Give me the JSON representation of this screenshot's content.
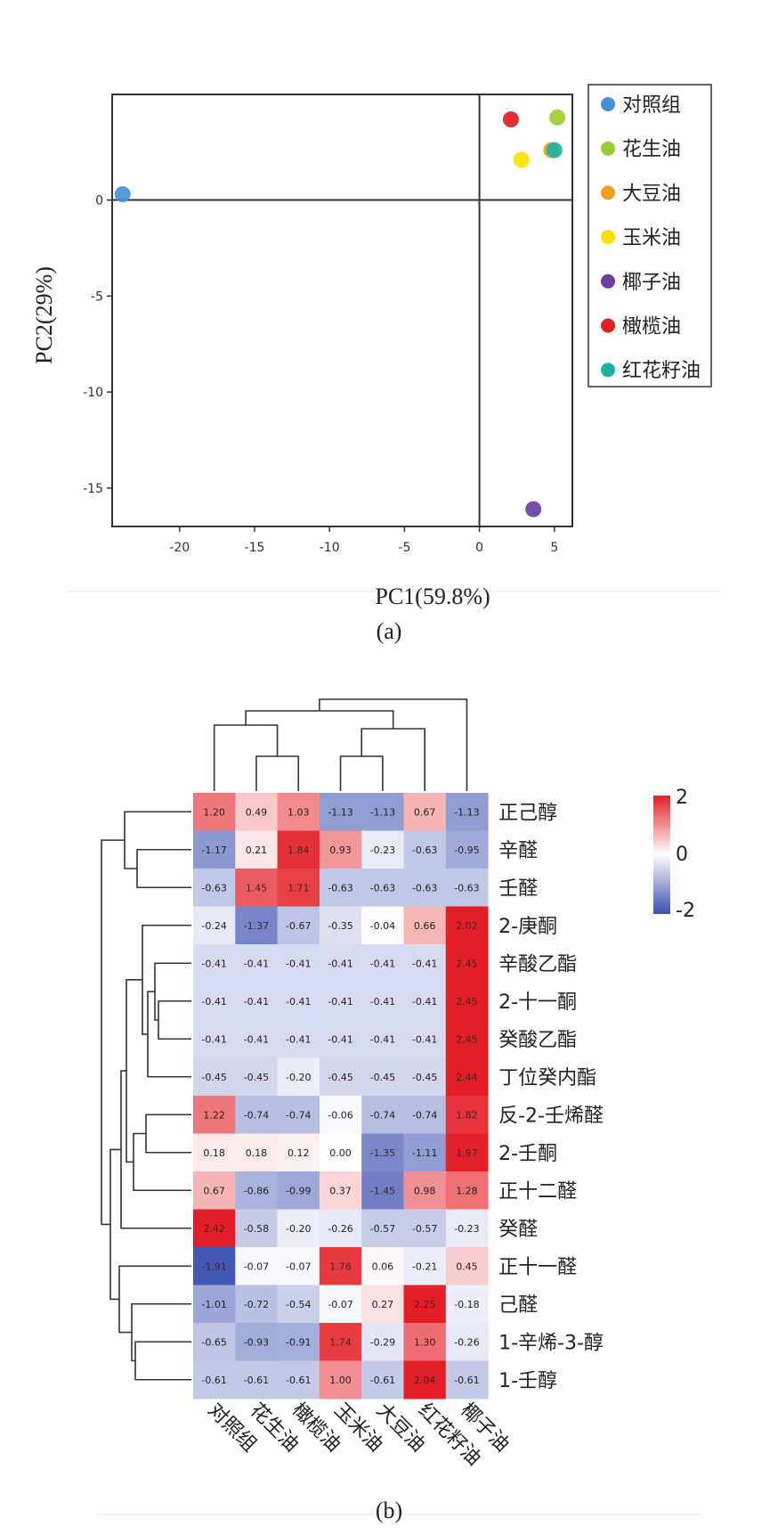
{
  "panel_a": {
    "caption": "(a)",
    "xlabel": "PC1(59.8%)",
    "ylabel": "PC2(29%)",
    "xticks": [
      "-20",
      "-15",
      "-10",
      "-5",
      "0",
      "5"
    ],
    "yticks": [
      "0",
      "-5",
      "-10",
      "-15"
    ]
  },
  "panel_b": {
    "caption": "(b)",
    "colorbar_labels": [
      "2",
      "0",
      "-2"
    ]
  },
  "chart_data": [
    {
      "type": "scatter",
      "xlabel": "PC1(59.8%)",
      "ylabel": "PC2(29%)",
      "xlim": [
        -24.5,
        6.2
      ],
      "ylim": [
        -17,
        5.5
      ],
      "grid": false,
      "reference_lines": {
        "x": 0,
        "y": 0
      },
      "legend_position": "right",
      "series": [
        {
          "name": "对照组",
          "color": "#4a90d9",
          "x": -23.8,
          "y": 0.3
        },
        {
          "name": "花生油",
          "color": "#9acd32",
          "x": 5.2,
          "y": 4.3
        },
        {
          "name": "大豆油",
          "color": "#f0a020",
          "x": 4.8,
          "y": 2.6
        },
        {
          "name": "玉米油",
          "color": "#ffe000",
          "x": 2.8,
          "y": 2.1
        },
        {
          "name": "椰子油",
          "color": "#6a3fa0",
          "x": 3.6,
          "y": -16.1
        },
        {
          "name": "橄榄油",
          "color": "#e02020",
          "x": 2.1,
          "y": 4.2
        },
        {
          "name": "红花籽油",
          "color": "#20b2a0",
          "x": 5.0,
          "y": 2.6
        }
      ]
    },
    {
      "type": "heatmap",
      "color_scale": {
        "min": -2,
        "max": 2,
        "low": "#3a4fb0",
        "mid": "#ffffff",
        "high": "#e41e26"
      },
      "columns": [
        "对照组",
        "花生油",
        "橄榄油",
        "玉米油",
        "大豆油",
        "红花籽油",
        "椰子油"
      ],
      "rows": [
        "正己醇",
        "辛醛",
        "壬醛",
        "2-庚酮",
        "辛酸乙酯",
        "2-十一酮",
        "癸酸乙酯",
        "丁位癸内酯",
        "反-2-壬烯醛",
        "2-壬酮",
        "正十二醛",
        "癸醛",
        "正十一醛",
        "己醛",
        "1-辛烯-3-醇",
        "1-壬醇"
      ],
      "values": [
        [
          1.2,
          0.49,
          1.03,
          -1.13,
          -1.13,
          0.67,
          -1.13
        ],
        [
          -1.17,
          0.21,
          1.84,
          0.93,
          -0.23,
          -0.63,
          -0.95
        ],
        [
          -0.63,
          1.45,
          1.71,
          -0.63,
          -0.63,
          -0.63,
          -0.63
        ],
        [
          -0.24,
          -1.37,
          -0.67,
          -0.35,
          -0.04,
          0.66,
          2.02
        ],
        [
          -0.41,
          -0.41,
          -0.41,
          -0.41,
          -0.41,
          -0.41,
          2.45
        ],
        [
          -0.41,
          -0.41,
          -0.41,
          -0.41,
          -0.41,
          -0.41,
          2.45
        ],
        [
          -0.41,
          -0.41,
          -0.41,
          -0.41,
          -0.41,
          -0.41,
          2.45
        ],
        [
          -0.45,
          -0.45,
          -0.2,
          -0.45,
          -0.45,
          -0.45,
          2.44
        ],
        [
          1.22,
          -0.74,
          -0.74,
          -0.06,
          -0.74,
          -0.74,
          1.82
        ],
        [
          0.18,
          0.18,
          0.12,
          0.0,
          -1.35,
          -1.11,
          1.97
        ],
        [
          0.67,
          -0.86,
          -0.99,
          0.37,
          -1.45,
          0.98,
          1.28
        ],
        [
          2.42,
          -0.58,
          -0.2,
          -0.26,
          -0.57,
          -0.57,
          -0.23
        ],
        [
          -1.91,
          -0.07,
          -0.07,
          1.76,
          0.06,
          -0.21,
          0.45
        ],
        [
          -1.01,
          -0.72,
          -0.54,
          -0.07,
          0.27,
          2.25,
          -0.18
        ],
        [
          -0.65,
          -0.93,
          -0.91,
          1.74,
          -0.29,
          1.3,
          -0.26
        ],
        [
          -0.61,
          -0.61,
          -0.61,
          1.0,
          -0.61,
          2.04,
          -0.61
        ]
      ],
      "value_format": "2 decimals"
    }
  ]
}
